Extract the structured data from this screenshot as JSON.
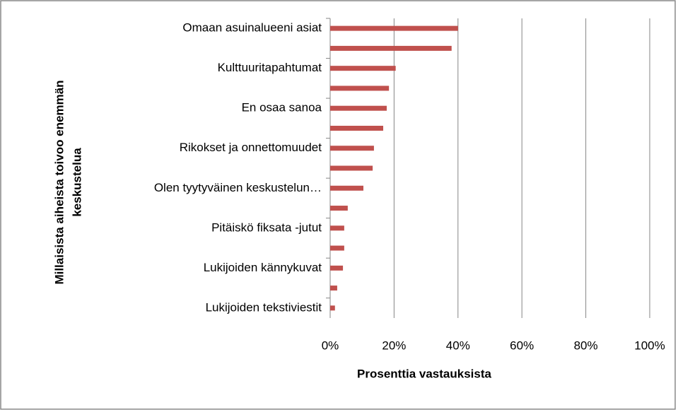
{
  "chart_data": {
    "type": "bar",
    "orientation": "horizontal",
    "xlabel": "Prosenttia vastauksista",
    "ylabel": [
      "Millaisista aiheista toivoo enemmän",
      "keskustelua"
    ],
    "categories": [
      "Omaan asuinalueeni asiat",
      null,
      "Kulttuuritapahtumat",
      null,
      "En osaa sanoa",
      null,
      "Rikokset ja onnettomuudet",
      null,
      "Olen tyytyväinen keskustelun…",
      null,
      "Pitäiskö fiksata -jutut",
      null,
      "Lukijoiden kännykuvat",
      null,
      "Lukijoiden tekstiviestit"
    ],
    "values": [
      40,
      38,
      20.5,
      18.4,
      17.7,
      16.6,
      13.7,
      13.3,
      10.4,
      5.5,
      4.4,
      4.4,
      4,
      2.2,
      1.5
    ],
    "color": "#c0504d",
    "xlim": [
      0,
      100
    ],
    "xticks": [
      {
        "value": 0,
        "label": "0%"
      },
      {
        "value": 20,
        "label": "20%"
      },
      {
        "value": 40,
        "label": "40%"
      },
      {
        "value": 60,
        "label": "60%"
      },
      {
        "value": 80,
        "label": "80%"
      },
      {
        "value": 100,
        "label": "100%"
      }
    ],
    "grid": true
  }
}
